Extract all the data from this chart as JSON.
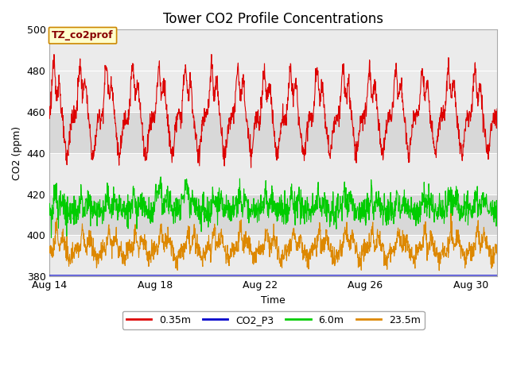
{
  "title": "Tower CO2 Profile Concentrations",
  "xlabel": "Time",
  "ylabel": "CO2 (ppm)",
  "ylim": [
    380,
    500
  ],
  "yticks": [
    380,
    400,
    420,
    440,
    460,
    480,
    500
  ],
  "xlim_days": [
    0,
    17
  ],
  "xtick_labels": [
    "Aug 14",
    "Aug 18",
    "Aug 22",
    "Aug 26",
    "Aug 30"
  ],
  "xtick_positions": [
    0,
    4,
    8,
    12,
    16
  ],
  "annotation_text": "TZ_co2prof",
  "annotation_facecolor": "#ffffcc",
  "annotation_edgecolor": "#cc8800",
  "annotation_textcolor": "#880000",
  "fig_facecolor": "#ffffff",
  "plot_facecolor": "#ebebeb",
  "series_red_label": "0.35m",
  "series_red_color": "#dd0000",
  "series_blue_label": "CO2_P3",
  "series_blue_color": "#0000cc",
  "series_green_label": "6.0m",
  "series_green_color": "#00cc00",
  "series_orange_label": "23.5m",
  "series_orange_color": "#dd8800",
  "band_color": "#d8d8d8",
  "band_ranges": [
    [
      400,
      420
    ],
    [
      440,
      460
    ]
  ],
  "grid_color": "#ffffff",
  "title_fontsize": 12,
  "axis_label_fontsize": 9,
  "tick_fontsize": 9,
  "legend_fontsize": 9
}
